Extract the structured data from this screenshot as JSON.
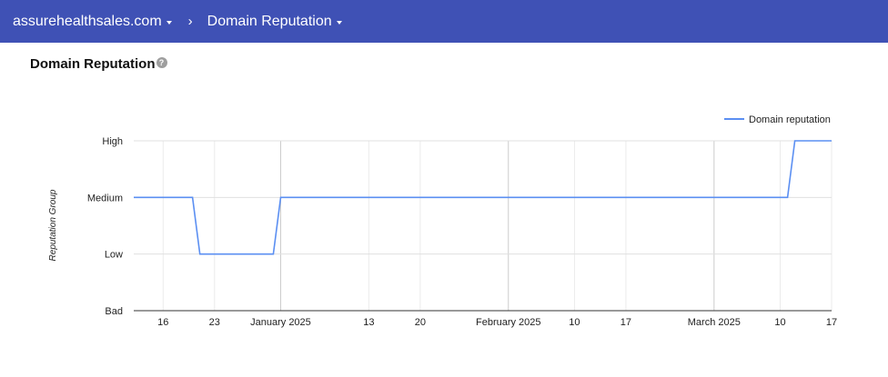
{
  "header": {
    "domain": "assurehealthsales.com",
    "separator": "›",
    "section": "Domain Reputation"
  },
  "page": {
    "title": "Domain Reputation",
    "help_icon": "help-circle-icon"
  },
  "colors": {
    "header_bg": "#3f51b5",
    "series": "#5b8ff2"
  },
  "chart_data": {
    "type": "line",
    "title": "",
    "ylabel": "Reputation Group",
    "xlabel": "",
    "y_categories": [
      "Bad",
      "Low",
      "Medium",
      "High"
    ],
    "x_range": [
      "2024-12-12",
      "2025-03-17"
    ],
    "x_ticks": [
      {
        "date": "2024-12-16",
        "label": "16"
      },
      {
        "date": "2024-12-23",
        "label": "23"
      },
      {
        "date": "2025-01-01",
        "label": "January 2025"
      },
      {
        "date": "2025-01-13",
        "label": "13"
      },
      {
        "date": "2025-01-20",
        "label": "20"
      },
      {
        "date": "2025-02-01",
        "label": "February 2025"
      },
      {
        "date": "2025-02-10",
        "label": "10"
      },
      {
        "date": "2025-02-17",
        "label": "17"
      },
      {
        "date": "2025-03-01",
        "label": "March 2025"
      },
      {
        "date": "2025-03-10",
        "label": "10"
      },
      {
        "date": "2025-03-17",
        "label": "17"
      }
    ],
    "legend": {
      "position": "top-right"
    },
    "grid": true,
    "series": [
      {
        "name": "Domain reputation",
        "points": [
          [
            "2024-12-12",
            "Medium"
          ],
          [
            "2024-12-20",
            "Medium"
          ],
          [
            "2024-12-21",
            "Low"
          ],
          [
            "2024-12-31",
            "Low"
          ],
          [
            "2025-01-01",
            "Medium"
          ],
          [
            "2025-03-11",
            "Medium"
          ],
          [
            "2025-03-12",
            "High"
          ],
          [
            "2025-03-17",
            "High"
          ]
        ]
      }
    ]
  }
}
